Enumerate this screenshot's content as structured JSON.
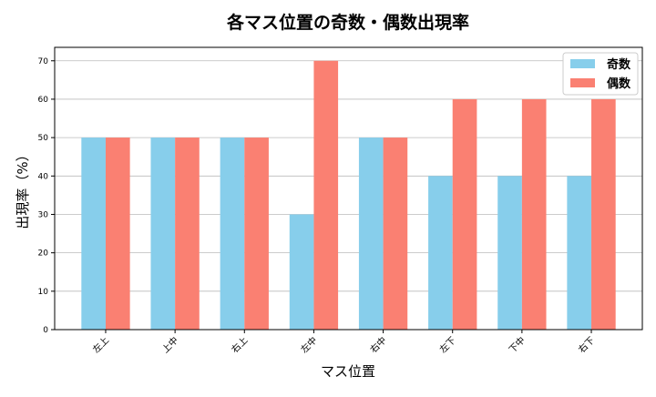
{
  "chart_data": {
    "type": "bar",
    "title": "各マス位置の奇数・偶数出現率",
    "xlabel": "マス位置",
    "ylabel": "出現率（%）",
    "categories": [
      "左上",
      "上中",
      "右上",
      "左中",
      "右中",
      "左下",
      "下中",
      "右下"
    ],
    "series": [
      {
        "name": "奇数",
        "color": "#87CEEB",
        "values": [
          50,
          50,
          50,
          30,
          50,
          40,
          40,
          40
        ]
      },
      {
        "name": "偶数",
        "color": "#FA8072",
        "values": [
          50,
          50,
          50,
          70,
          50,
          60,
          60,
          60
        ]
      }
    ],
    "yticks": [
      0,
      10,
      20,
      30,
      40,
      50,
      60,
      70
    ],
    "ylim": [
      0,
      73.5
    ],
    "grid": "y",
    "legend": "top-right"
  }
}
